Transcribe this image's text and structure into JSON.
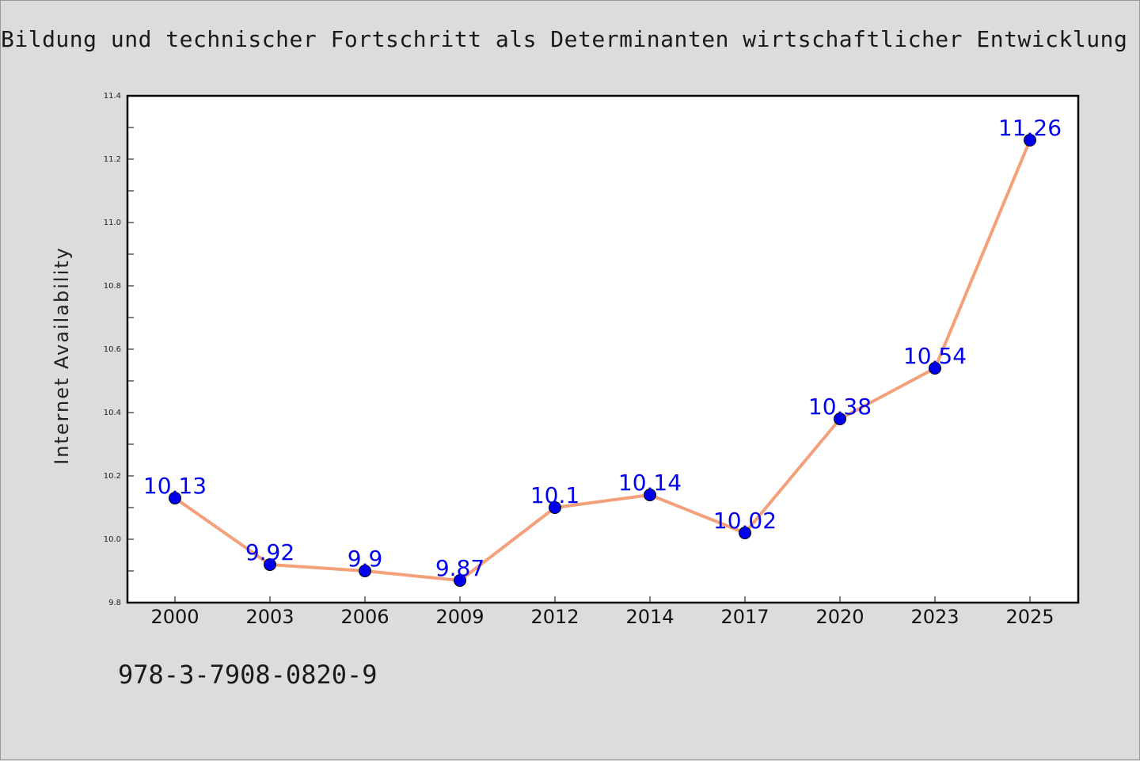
{
  "page": {
    "title": "Bildung und technischer Fortschritt als Determinanten wirtschaftlicher Entwicklung",
    "footer_text": "978-3-7908-0820-9"
  },
  "chart_data": {
    "type": "line",
    "title": "Bildung und technischer Fortschritt als Determinanten wirtschaftlicher Entwicklung",
    "xlabel": "",
    "ylabel": "Internet Availability",
    "categories": [
      "2000",
      "2003",
      "2006",
      "2009",
      "2012",
      "2014",
      "2017",
      "2020",
      "2023",
      "2025"
    ],
    "series": [
      {
        "values": [
          10.13,
          9.92,
          9.9,
          9.87,
          10.1,
          10.14,
          10.02,
          10.38,
          10.54,
          11.26
        ],
        "labels": [
          "10.13",
          "9.92",
          "9.9",
          "9.87",
          "10.1",
          "10.14",
          "10.02",
          "10.38",
          "10.54",
          "11.26"
        ]
      }
    ],
    "ylim": [
      9.8,
      11.4
    ],
    "yticks": [
      "9.8",
      "10.0",
      "10.2",
      "10.4",
      "10.6",
      "10.8",
      "11.0",
      "11.2",
      "11.4"
    ],
    "grid": false,
    "colors": {
      "line": "#f4a07a",
      "marker": "#0000ee",
      "data_label": "#0000ee",
      "axes": "#000000",
      "background": "#dcdcdc",
      "plot_background": "#ffffff"
    }
  }
}
